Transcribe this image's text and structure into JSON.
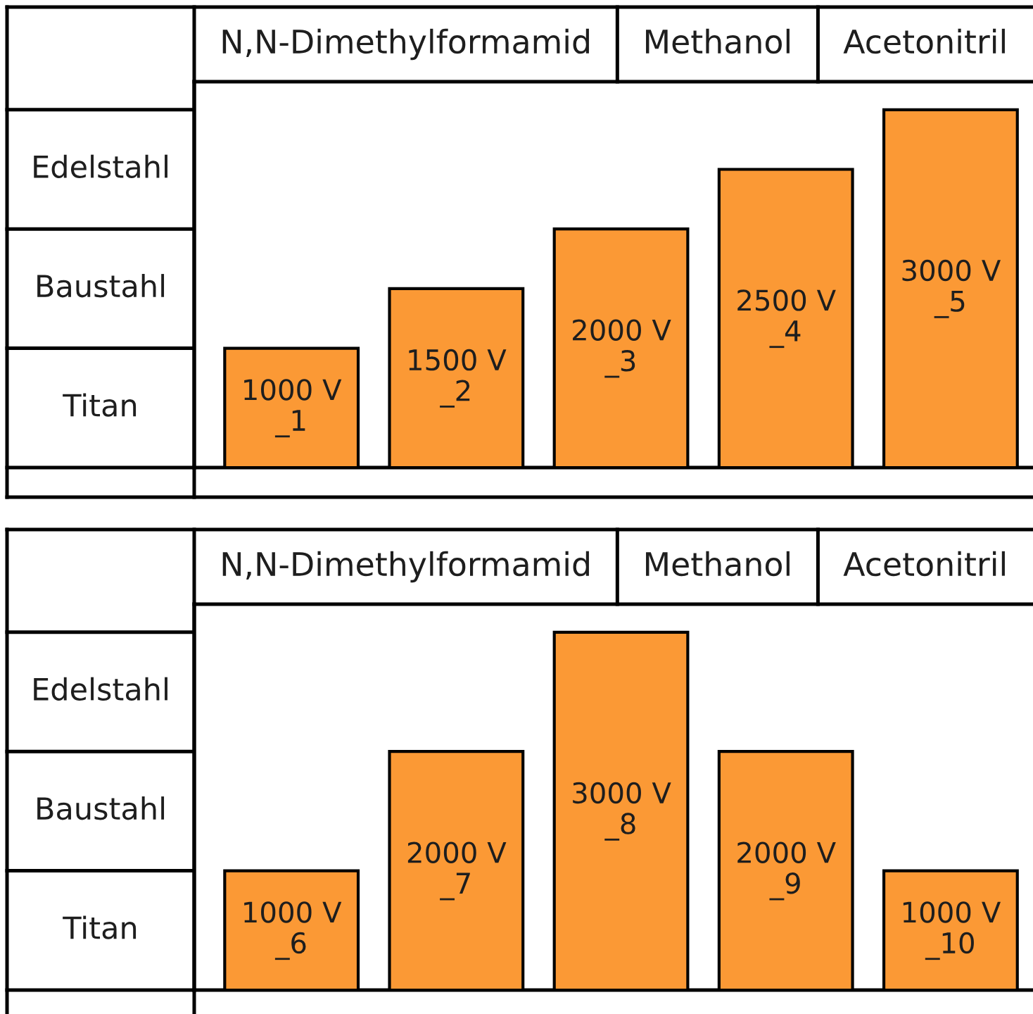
{
  "chart_data": [
    {
      "type": "other",
      "annotations": [
        "Edelstahl",
        "Baustahl",
        "Titan"
      ]
    },
    {
      "type": "bar",
      "categories": [
        null,
        null,
        null,
        null,
        null
      ],
      "values": [
        1000,
        1500,
        2000,
        2500,
        3000
      ],
      "color": "#fb9935",
      "value_labels": [
        "1000 V\n_1",
        "1500 V\n_2",
        "2000 V\n_3",
        "2500 V\n_4",
        "3000 V\n_5"
      ],
      "ylim": [
        0,
        3235
      ],
      "tick_labels": false,
      "annotations": [
        "N,N-Dimethylformamid",
        "Methanol",
        "Acetonitril"
      ]
    },
    {
      "type": "other",
      "annotations": [
        "Edelstahl",
        "Baustahl",
        "Titan"
      ]
    },
    {
      "type": "bar",
      "categories": [
        null,
        null,
        null,
        null,
        null
      ],
      "values": [
        1000,
        2000,
        3000,
        2000,
        1000
      ],
      "color": "#fb9935",
      "value_labels": [
        "1000 V\n_6",
        "2000 V\n_7",
        "3000 V\n_8",
        "2000 V\n_9",
        "1000 V\n_10"
      ],
      "ylim": [
        0,
        3235
      ],
      "tick_labels": false,
      "annotations": [
        "N,N-Dimethylformamid",
        "Methanol",
        "Acetonitril"
      ]
    }
  ]
}
